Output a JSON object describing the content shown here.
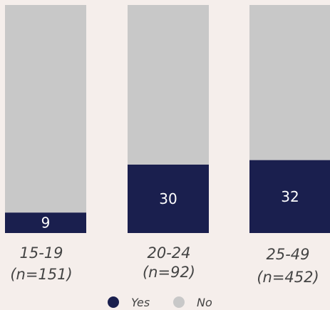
{
  "chart_data": {
    "type": "bar",
    "stacked": true,
    "percent": true,
    "categories": [
      "15-19",
      "20-24",
      "25-49"
    ],
    "sample_sizes": [
      "(n=151)",
      "(n=92)",
      "(n=452)"
    ],
    "series": [
      {
        "name": "Yes",
        "values": [
          9,
          30,
          32
        ],
        "color": "#1a1f4e",
        "show_labels": true
      },
      {
        "name": "No",
        "values": [
          91,
          70,
          68
        ],
        "color": "#c8c8c8",
        "show_labels": false
      }
    ],
    "ylim": [
      0,
      100
    ],
    "legend": {
      "position": "bottom",
      "items": [
        "Yes",
        "No"
      ]
    },
    "grid": false
  },
  "colors": {
    "background": "#f5eeeb",
    "yes": "#1a1f4e",
    "no": "#c8c8c8",
    "label_text": "#444444",
    "value_text": "#ffffff"
  }
}
